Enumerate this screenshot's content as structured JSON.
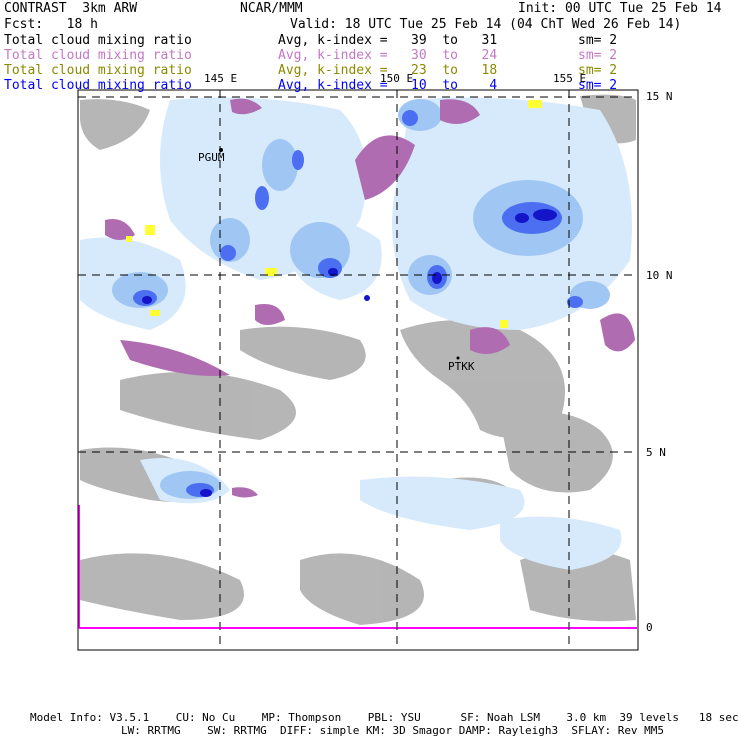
{
  "header": {
    "model": "CONTRAST  3km ARW",
    "center": "NCAR/MMM",
    "init": "Init: 00 UTC Tue 25 Feb 14",
    "fcst": "Fcst:   18 h",
    "valid": "Valid: 18 UTC Tue 25 Feb 14 (04 ChT Wed 26 Feb 14)"
  },
  "legend": [
    {
      "field": "Total cloud mixing ratio",
      "range": "Avg, k-index =   39  to   31",
      "sm": "sm= 2",
      "color": "#000000"
    },
    {
      "field": "Total cloud mixing ratio",
      "range": "Avg, k-index =   30  to   24",
      "sm": "sm= 2",
      "color": "#c478c4"
    },
    {
      "field": "Total cloud mixing ratio",
      "range": "Avg, k-index =   23  to   18",
      "sm": "sm= 2",
      "color": "#8a8a00"
    },
    {
      "field": "Total cloud mixing ratio",
      "range": "Avg, k-index =   10  to    4",
      "sm": "sm= 2",
      "color": "#0000ff"
    }
  ],
  "axes": {
    "lon_labels": [
      "145 E",
      "150 E",
      "155 E"
    ],
    "lat_labels": [
      "15 N",
      "10 N",
      "5 N",
      "0"
    ]
  },
  "stations": [
    "PGUM",
    "PTKK"
  ],
  "footer": {
    "line1": "Model Info: V3.5.1    CU: No Cu    MP: Thompson    PBL: YSU      SF: Noah LSM    3.0 km  39 levels   18 sec",
    "line2": "LW: RRTMG    SW: RRTMG  DIFF: simple KM: 3D Smagor DAMP: Rayleigh3  SFLAY: Rev MM5"
  },
  "colors": {
    "gray": "#a8a8a8",
    "light_blue": "#d8ecfc",
    "mid_blue": "#9cc4f4",
    "blue": "#4a6cf0",
    "dark_blue": "#1a1ad0",
    "purple": "#b070b0",
    "yellow": "#ffff33",
    "magenta": "#ff00ff"
  }
}
